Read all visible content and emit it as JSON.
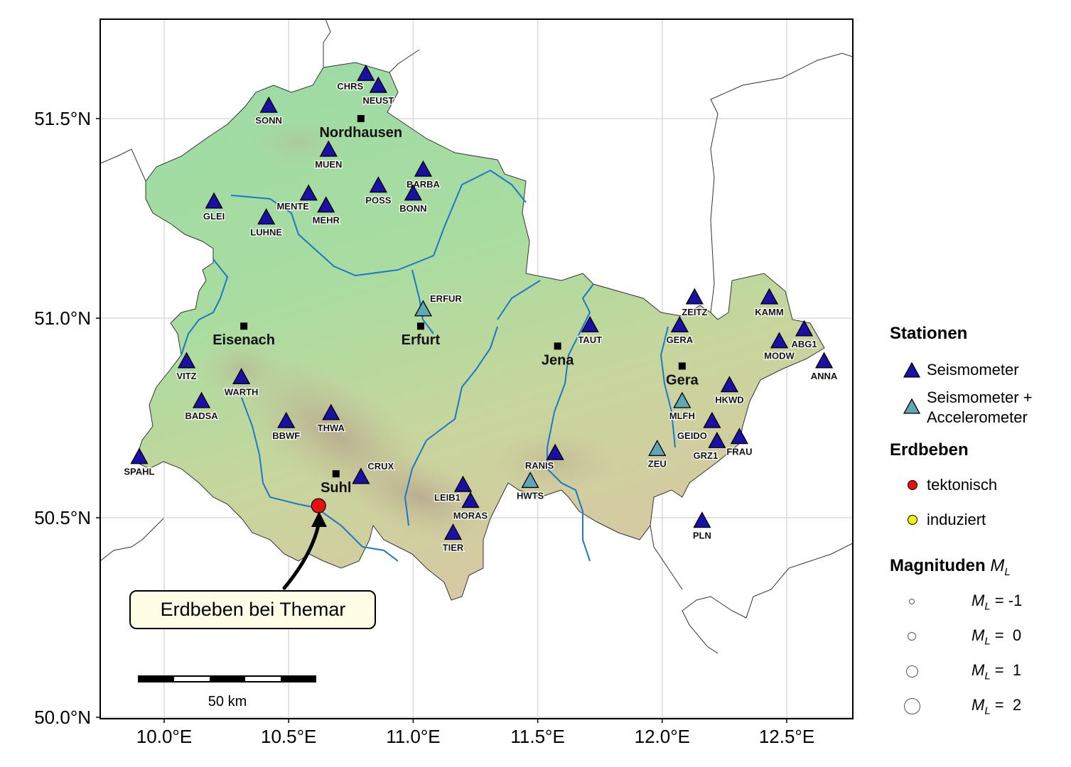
{
  "map": {
    "lat_ticks": [
      "51.5°N",
      "51.0°N",
      "50.5°N",
      "50.0°N"
    ],
    "lon_ticks": [
      "10.0°E",
      "10.5°E",
      "11.0°E",
      "11.5°E",
      "12.0°E",
      "12.5°E"
    ],
    "extent": {
      "lon": [
        9.75,
        12.75
      ],
      "lat": [
        50.0,
        51.75
      ]
    },
    "scalebar_label": "50 km",
    "callout_label": "Erdbeben bei Themar",
    "colors": {
      "seismometer": "#1a10a8",
      "accelerometer": "#5fa6b8",
      "tektonisch": "#e81010",
      "induziert": "#f2ee10",
      "river": "#1c78c8",
      "land_low": "#8fd8a0",
      "land_high": "#c9b79a"
    }
  },
  "cities": [
    {
      "name": "Nordhausen",
      "lon": 10.79,
      "lat": 51.5
    },
    {
      "name": "Eisenach",
      "lon": 10.32,
      "lat": 50.98
    },
    {
      "name": "Erfurt",
      "lon": 11.03,
      "lat": 50.98
    },
    {
      "name": "Jena",
      "lon": 11.58,
      "lat": 50.93
    },
    {
      "name": "Gera",
      "lon": 12.08,
      "lat": 50.88
    },
    {
      "name": "Suhl",
      "lon": 10.69,
      "lat": 50.61
    }
  ],
  "stations": [
    {
      "code": "CHRS",
      "type": "seismometer",
      "lon": 10.81,
      "lat": 51.61
    },
    {
      "code": "NEUST",
      "type": "seismometer",
      "lon": 10.86,
      "lat": 51.58
    },
    {
      "code": "SONN",
      "type": "seismometer",
      "lon": 10.42,
      "lat": 51.53
    },
    {
      "code": "MUEN",
      "type": "seismometer",
      "lon": 10.66,
      "lat": 51.42
    },
    {
      "code": "BARBA",
      "type": "seismometer",
      "lon": 11.04,
      "lat": 51.37
    },
    {
      "code": "POSS",
      "type": "seismometer",
      "lon": 10.86,
      "lat": 51.33
    },
    {
      "code": "BONN",
      "type": "seismometer",
      "lon": 11.0,
      "lat": 51.31
    },
    {
      "code": "MENTE",
      "type": "seismometer",
      "lon": 10.58,
      "lat": 51.31
    },
    {
      "code": "MEHR",
      "type": "seismometer",
      "lon": 10.65,
      "lat": 51.28
    },
    {
      "code": "GLEI",
      "type": "seismometer",
      "lon": 10.2,
      "lat": 51.29
    },
    {
      "code": "LUHNE",
      "type": "seismometer",
      "lon": 10.41,
      "lat": 51.25
    },
    {
      "code": "ERFUR",
      "type": "accelerometer",
      "lon": 11.04,
      "lat": 51.02
    },
    {
      "code": "ZEITZ",
      "type": "seismometer",
      "lon": 12.13,
      "lat": 51.05
    },
    {
      "code": "KAMM",
      "type": "seismometer",
      "lon": 12.43,
      "lat": 51.05
    },
    {
      "code": "GERA",
      "type": "seismometer",
      "lon": 12.07,
      "lat": 50.98
    },
    {
      "code": "TAUT",
      "type": "seismometer",
      "lon": 11.71,
      "lat": 50.98
    },
    {
      "code": "ABG1",
      "type": "seismometer",
      "lon": 12.57,
      "lat": 50.97
    },
    {
      "code": "MODW",
      "type": "seismometer",
      "lon": 12.47,
      "lat": 50.94
    },
    {
      "code": "ANNA",
      "type": "seismometer",
      "lon": 12.65,
      "lat": 50.89
    },
    {
      "code": "VITZ",
      "type": "seismometer",
      "lon": 10.09,
      "lat": 50.89
    },
    {
      "code": "WARTH",
      "type": "seismometer",
      "lon": 10.31,
      "lat": 50.85
    },
    {
      "code": "HKWD",
      "type": "seismometer",
      "lon": 12.27,
      "lat": 50.83
    },
    {
      "code": "BADSA",
      "type": "seismometer",
      "lon": 10.15,
      "lat": 50.79
    },
    {
      "code": "MLFH",
      "type": "accelerometer",
      "lon": 12.08,
      "lat": 50.79
    },
    {
      "code": "THWA",
      "type": "seismometer",
      "lon": 10.67,
      "lat": 50.76
    },
    {
      "code": "BBWF",
      "type": "seismometer",
      "lon": 10.49,
      "lat": 50.74
    },
    {
      "code": "GEIDO",
      "type": "seismometer",
      "lon": 12.2,
      "lat": 50.74
    },
    {
      "code": "FRAU",
      "type": "seismometer",
      "lon": 12.31,
      "lat": 50.7
    },
    {
      "code": "GRZ1",
      "type": "seismometer",
      "lon": 12.22,
      "lat": 50.69
    },
    {
      "code": "ZEU",
      "type": "accelerometer",
      "lon": 11.98,
      "lat": 50.67
    },
    {
      "code": "RANIS",
      "type": "seismometer",
      "lon": 11.57,
      "lat": 50.66
    },
    {
      "code": "SPAHL",
      "type": "seismometer",
      "lon": 9.9,
      "lat": 50.65
    },
    {
      "code": "CRUX",
      "type": "seismometer",
      "lon": 10.79,
      "lat": 50.6
    },
    {
      "code": "HWTS",
      "type": "accelerometer",
      "lon": 11.47,
      "lat": 50.59
    },
    {
      "code": "LEIB1",
      "type": "seismometer",
      "lon": 11.2,
      "lat": 50.58
    },
    {
      "code": "MORAS",
      "type": "seismometer",
      "lon": 11.23,
      "lat": 50.54
    },
    {
      "code": "TIER",
      "type": "seismometer",
      "lon": 11.16,
      "lat": 50.46
    },
    {
      "code": "PLN",
      "type": "seismometer",
      "lon": 12.16,
      "lat": 50.49
    }
  ],
  "earthquake": {
    "lon": 10.62,
    "lat": 50.53,
    "type": "tektonisch"
  },
  "legend": {
    "stationen_title": "Stationen",
    "seismometer_label": "Seismometer",
    "accelerometer_label_1": "Seismometer +",
    "accelerometer_label_2": "Accelerometer",
    "erdbeben_title": "Erdbeben",
    "tektonisch_label": "tektonisch",
    "induziert_label": "induziert",
    "magnituden_title": "Magnituden",
    "magnituden_symbol": "M",
    "magnituden_sub": "L",
    "magnitudes": [
      {
        "value": "-1",
        "text": " = -1"
      },
      {
        "value": "0",
        "text": " =  0"
      },
      {
        "value": "1",
        "text": " =  1"
      },
      {
        "value": "2",
        "text": " =  2"
      }
    ]
  }
}
